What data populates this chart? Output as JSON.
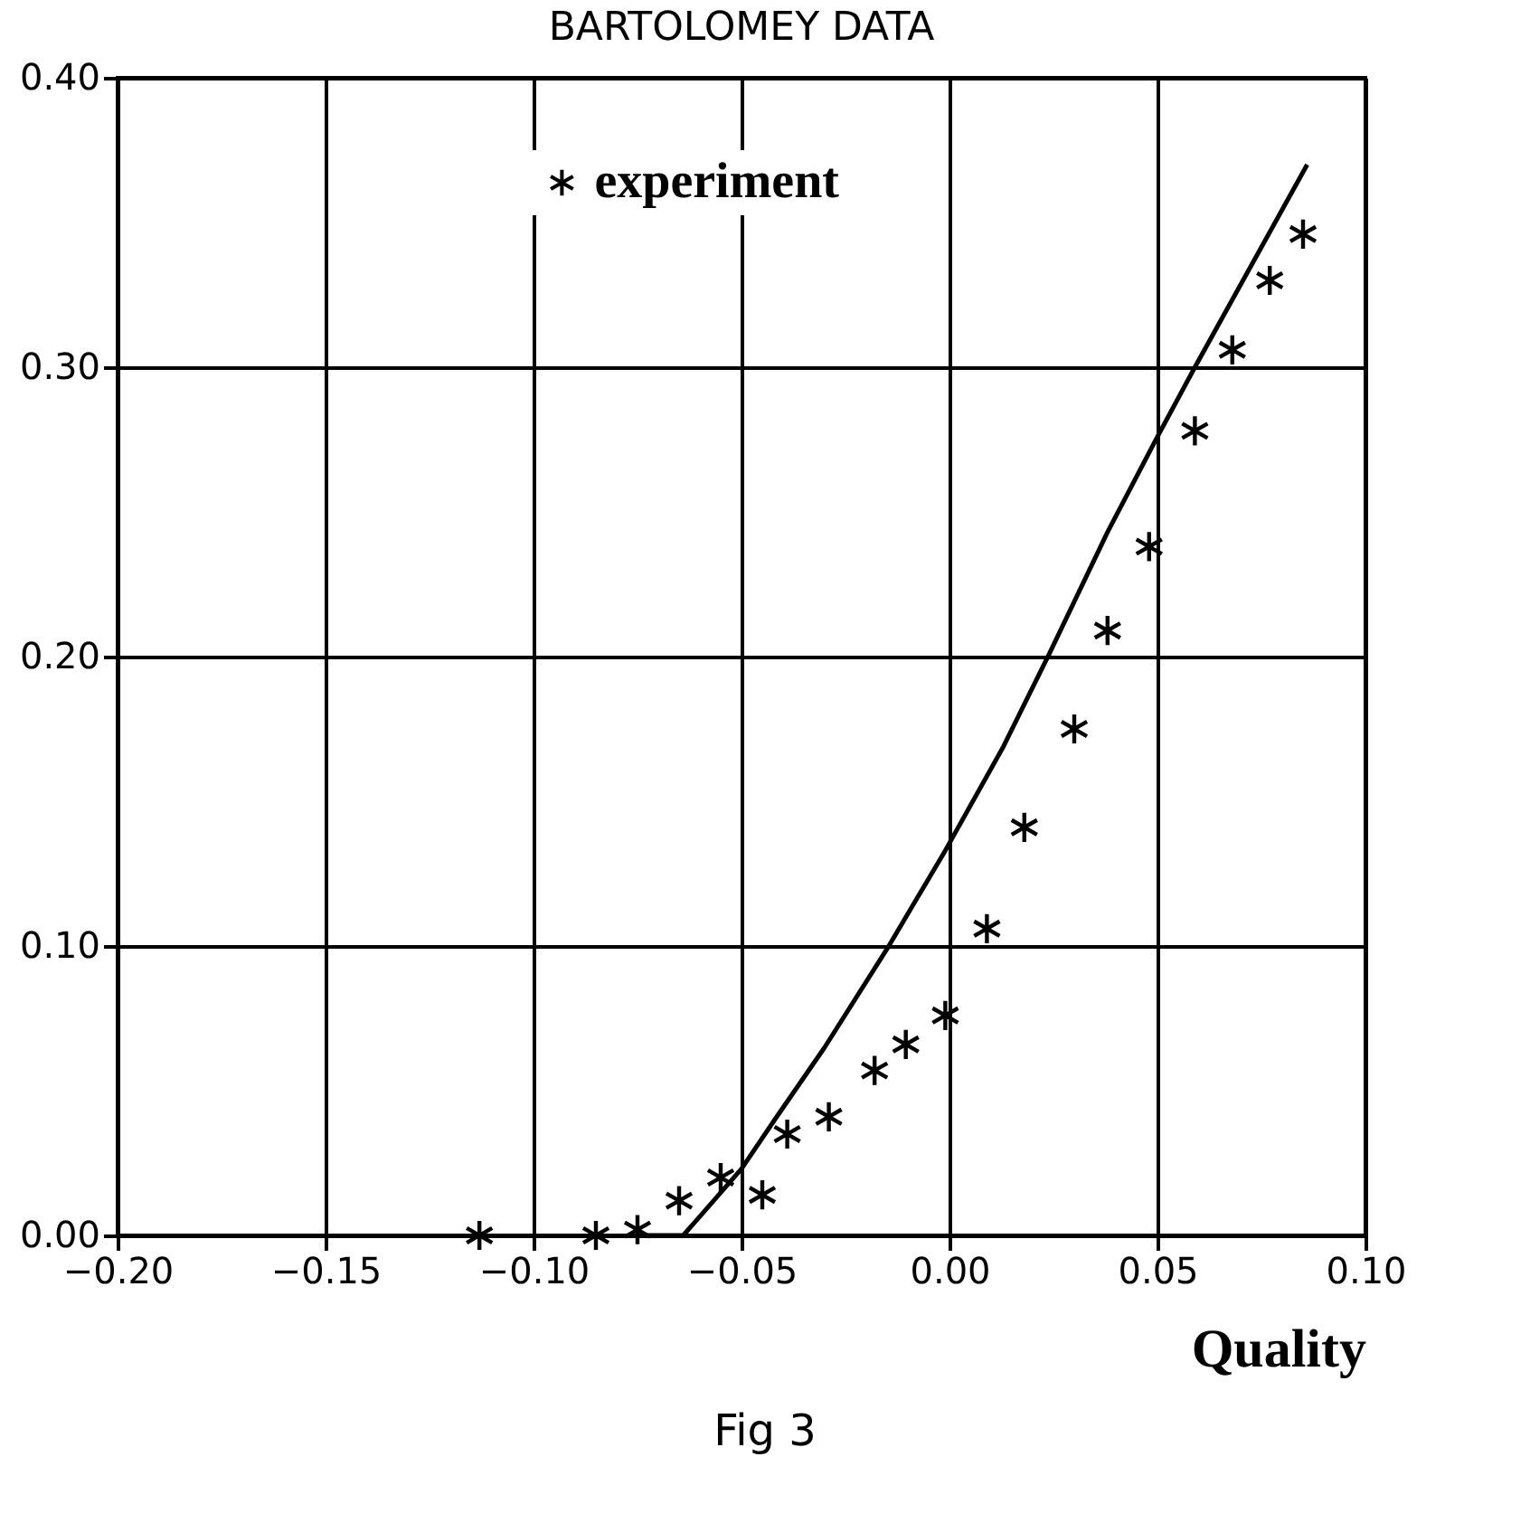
{
  "chart_data": {
    "type": "scatter",
    "title": "BARTOLOMEY DATA",
    "xlabel": "Quality",
    "annotations": [
      "Fig 3"
    ],
    "xlim": [
      -0.2,
      0.1
    ],
    "xticks": [
      {
        "value": -0.2,
        "label": "−0.20"
      },
      {
        "value": -0.15,
        "label": "−0.15"
      },
      {
        "value": -0.1,
        "label": "−0.10"
      },
      {
        "value": -0.05,
        "label": "−0.05"
      },
      {
        "value": 0,
        "label": "0.00"
      },
      {
        "value": 0.05,
        "label": "0.05"
      },
      {
        "value": 0.1,
        "label": "0.10"
      }
    ],
    "ylim": [
      0,
      0.4
    ],
    "yticks": [
      {
        "value": 0,
        "label": "0.00"
      },
      {
        "value": 0.1,
        "label": "0.10"
      },
      {
        "value": 0.2,
        "label": "0.20"
      },
      {
        "value": 0.3,
        "label": "0.30"
      },
      {
        "value": 0.4,
        "label": "0.40"
      }
    ],
    "grid": true,
    "legend": "top",
    "series": [
      {
        "name": "experiment",
        "marker": "cross",
        "color": "#000000",
        "x": [
          -0.113,
          -0.085,
          -0.075,
          -0.065,
          -0.055,
          -0.045,
          -0.039,
          -0.029,
          -0.018,
          -0.0105,
          -0.001,
          0.009,
          0.018,
          0.03,
          0.038,
          0.048,
          0.059,
          0.068,
          0.077,
          0.085
        ],
        "values": [
          0,
          0,
          0.002,
          0.012,
          0.02,
          0.014,
          0.035,
          0.041,
          0.057,
          0.066,
          0.076,
          0.106,
          0.141,
          0.175,
          0.209,
          0.238,
          0.278,
          0.306,
          0.33,
          0.346
        ]
      },
      {
        "type": "line",
        "marker": "none",
        "color": "#000000",
        "line_style": "solid",
        "x": [
          -0.075,
          -0.064,
          -0.05,
          -0.042,
          -0.03,
          -0.015,
          -0.001,
          0.013,
          0.024,
          0.038,
          0.05,
          0.059,
          0.086
        ],
        "values": [
          0,
          0,
          0.023,
          0.04,
          0.065,
          0.099,
          0.133,
          0.169,
          0.201,
          0.243,
          0.276,
          0.3,
          0.37
        ]
      }
    ]
  }
}
